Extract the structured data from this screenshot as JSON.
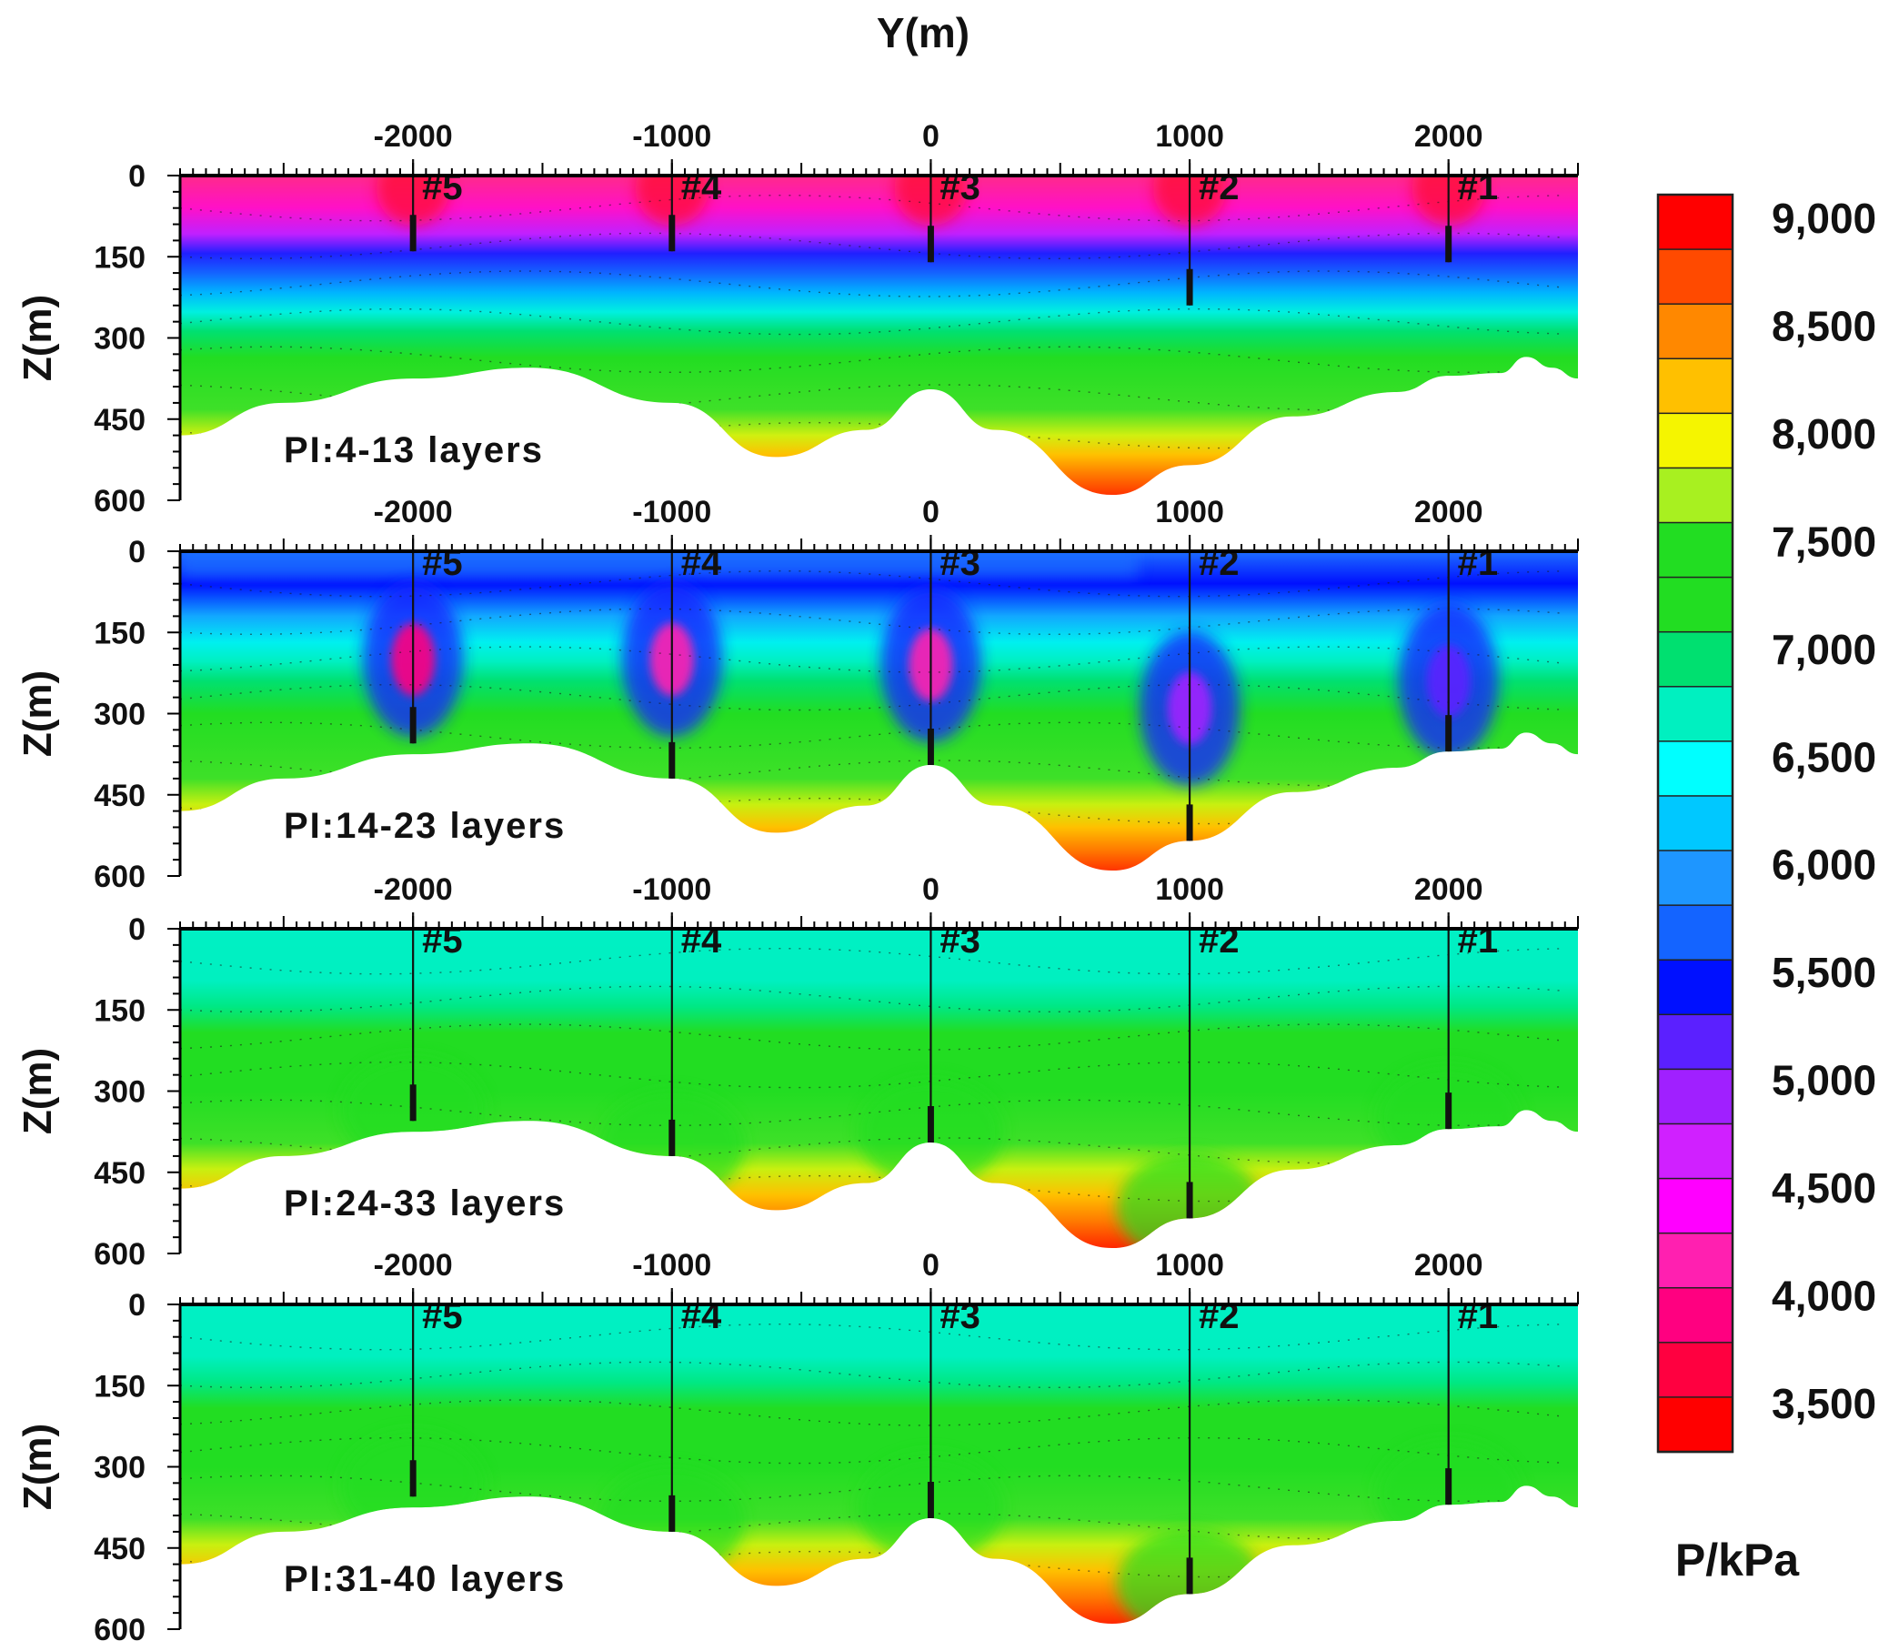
{
  "chart_data": {
    "type": "heatmap",
    "title": "",
    "xlabel": "Y(m)",
    "ylabel": "Z(m)",
    "xlim": [
      -2900,
      2500
    ],
    "x_ticks": [
      "-2000",
      "-1000",
      "0",
      "1000",
      "2000"
    ],
    "x_tick_values": [
      -2000,
      -1000,
      0,
      1000,
      2000
    ],
    "ylim": [
      0,
      600
    ],
    "y_ticks": [
      "0",
      "150",
      "300",
      "450",
      "600"
    ],
    "y_tick_values": [
      0,
      150,
      300,
      450,
      600
    ],
    "wells": [
      {
        "name": "#5",
        "y": -2000
      },
      {
        "name": "#4",
        "y": -1000
      },
      {
        "name": "#3",
        "y": 0
      },
      {
        "name": "#2",
        "y": 1000
      },
      {
        "name": "#1",
        "y": 2000
      }
    ],
    "boundary_profile": {
      "y": [
        -2900,
        -2500,
        -2000,
        -1550,
        -1000,
        -600,
        -250,
        0,
        250,
        700,
        1000,
        1400,
        1800,
        2000,
        2200,
        2300,
        2400,
        2500
      ],
      "z": [
        480,
        420,
        375,
        355,
        420,
        520,
        470,
        395,
        470,
        590,
        535,
        445,
        400,
        370,
        365,
        335,
        355,
        375
      ]
    },
    "panels": [
      {
        "label": "PI:4-13 layers",
        "upper_zone_value": 3900,
        "lower_zone_value": 7200,
        "well_anomaly_values": [
          3500,
          3500,
          3500,
          3500,
          3500
        ]
      },
      {
        "label": "PI:14-23 layers",
        "upper_zone_value": 5600,
        "lower_zone_value": 7200,
        "well_anomaly_values": [
          4200,
          4300,
          4400,
          5100,
          5300
        ]
      },
      {
        "label": "PI:24-33 layers",
        "upper_zone_value": 6700,
        "lower_zone_value": 7200,
        "well_anomaly_values": [
          7000,
          7000,
          7000,
          7000,
          7000
        ]
      },
      {
        "label": "PI:31-40 layers",
        "upper_zone_value": 6700,
        "lower_zone_value": 7200,
        "well_anomaly_values": [
          7000,
          7000,
          7000,
          7000,
          7000
        ]
      }
    ],
    "colorbar": {
      "label": "P/kPa",
      "tick_labels": [
        "9,000",
        "8,500",
        "8,000",
        "7,500",
        "7,000",
        "6,500",
        "6,000",
        "5,500",
        "5,000",
        "4,500",
        "4,000",
        "3,500"
      ],
      "colors": [
        "#ff0000",
        "#ff4a00",
        "#ff8800",
        "#ffc000",
        "#f5f500",
        "#a8f020",
        "#22dd22",
        "#22dd22",
        "#00e070",
        "#00f0c0",
        "#00ffff",
        "#00c8ff",
        "#1e96ff",
        "#1464ff",
        "#0010ff",
        "#5b20ff",
        "#a020ff",
        "#d020ff",
        "#ff00ff",
        "#ff20b0",
        "#ff0080",
        "#ff0040",
        "#ff0000"
      ],
      "value_top": 9000,
      "value_bottom": 3500
    }
  }
}
